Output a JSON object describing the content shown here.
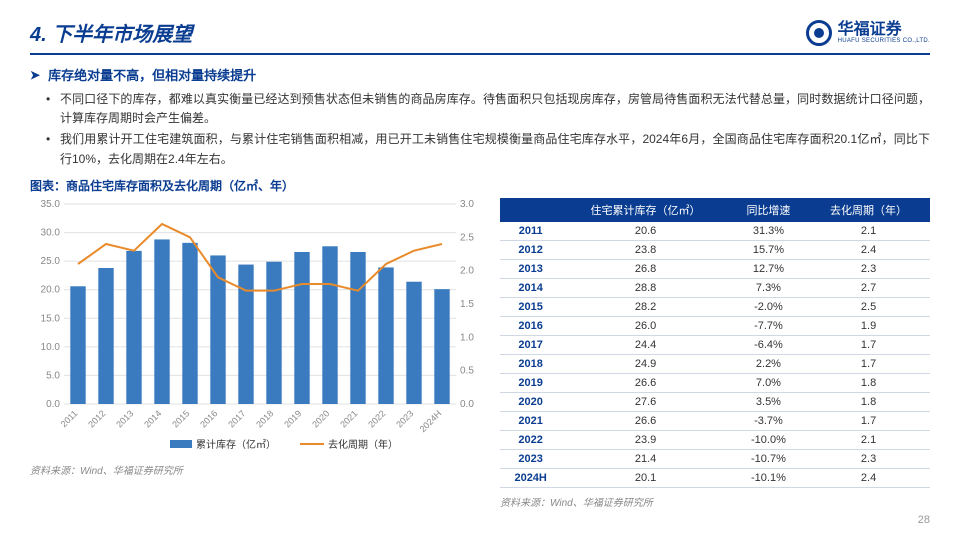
{
  "header": {
    "title": "4. 下半年市场展望",
    "logo_text": "华福证券",
    "logo_sub": "HUAFU SECURITIES CO.,LTD."
  },
  "subhead": "库存绝对量不高，但相对量持续提升",
  "bullets": [
    "不同口径下的库存，都难以真实衡量已经达到预售状态但未销售的商品房库存。待售面积只包括现房库存，房管局待售面积无法代替总量，同时数据统计口径问题，计算库存周期时会产生偏差。",
    "我们用累计开工住宅建筑面积，与累计住宅销售面积相减，用已开工未销售住宅规模衡量商品住宅库存水平，2024年6月，全国商品住宅库存面积20.1亿㎡，同比下行10%，去化周期在2.4年左右。"
  ],
  "chart": {
    "title": "图表：商品住宅库存面积及去化周期（亿㎡、年）",
    "type": "bar-line-combo",
    "categories": [
      "2011",
      "2012",
      "2013",
      "2014",
      "2015",
      "2016",
      "2017",
      "2018",
      "2019",
      "2020",
      "2021",
      "2022",
      "2023",
      "2024H"
    ],
    "bar_values": [
      20.6,
      23.8,
      26.8,
      28.8,
      28.2,
      26.0,
      24.4,
      24.9,
      26.6,
      27.6,
      26.6,
      23.9,
      21.4,
      20.1
    ],
    "line_values": [
      2.1,
      2.4,
      2.3,
      2.7,
      2.5,
      1.9,
      1.7,
      1.7,
      1.8,
      1.8,
      1.7,
      2.1,
      2.3,
      2.4
    ],
    "bar_color": "#3a7bbf",
    "line_color": "#e98b2a",
    "y_left": {
      "min": 0,
      "max": 35,
      "step": 5,
      "label_color": "#888"
    },
    "y_right": {
      "min": 0,
      "max": 3.0,
      "step": 0.5,
      "label_color": "#888"
    },
    "grid_color": "#e0e0e0",
    "background": "#ffffff",
    "legend": {
      "bar": "累计库存（亿㎡）",
      "line": "去化周期（年）"
    },
    "axis_fontsize": 10,
    "xlabel_fontsize": 9,
    "line_width": 2,
    "bar_width_ratio": 0.55
  },
  "table": {
    "headers": [
      "",
      "住宅累计库存（亿㎡）",
      "同比增速",
      "去化周期（年）"
    ],
    "rows": [
      [
        "2011",
        "20.6",
        "31.3%",
        "2.1"
      ],
      [
        "2012",
        "23.8",
        "15.7%",
        "2.4"
      ],
      [
        "2013",
        "26.8",
        "12.7%",
        "2.3"
      ],
      [
        "2014",
        "28.8",
        "7.3%",
        "2.7"
      ],
      [
        "2015",
        "28.2",
        "-2.0%",
        "2.5"
      ],
      [
        "2016",
        "26.0",
        "-7.7%",
        "1.9"
      ],
      [
        "2017",
        "24.4",
        "-6.4%",
        "1.7"
      ],
      [
        "2018",
        "24.9",
        "2.2%",
        "1.7"
      ],
      [
        "2019",
        "26.6",
        "7.0%",
        "1.8"
      ],
      [
        "2020",
        "27.6",
        "3.5%",
        "1.8"
      ],
      [
        "2021",
        "26.6",
        "-3.7%",
        "1.7"
      ],
      [
        "2022",
        "23.9",
        "-10.0%",
        "2.1"
      ],
      [
        "2023",
        "21.4",
        "-10.7%",
        "2.3"
      ],
      [
        "2024H",
        "20.1",
        "-10.1%",
        "2.4"
      ]
    ],
    "header_bg": "#0a3d91",
    "header_color": "#ffffff",
    "border_color": "#d0d7e5",
    "year_color": "#0a3d91"
  },
  "source_left": "资料来源：Wind、华福证券研究所",
  "source_right": "资料来源：Wind、华福证券研究所",
  "page_number": "28"
}
